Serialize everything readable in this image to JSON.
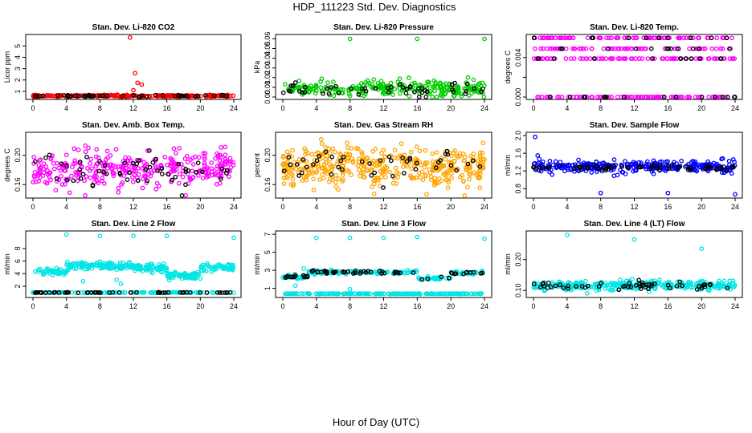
{
  "figure": {
    "title": "HDP_111223  Std. Dev. Diagnostics",
    "xlabel": "Hour of Day (UTC)"
  },
  "chart_data": [
    {
      "type": "scatter",
      "title": "Stan. Dev. Li-820 CO2",
      "ylabel": "Licor ppm",
      "xlim": [
        0,
        24
      ],
      "ylim": [
        0.5,
        5.8
      ],
      "xticks": [
        0,
        4,
        8,
        12,
        16,
        20,
        24
      ],
      "yticks": [
        1,
        2,
        3,
        4,
        5
      ],
      "ytick_labels": [
        "1",
        "2",
        "3",
        "4",
        "5"
      ],
      "series": [
        {
          "name": "primary",
          "color": "#ff0000",
          "base": 0.6,
          "spread": 0.06,
          "n": 230,
          "outliers": [
            [
              11.6,
              5.75
            ],
            [
              12.2,
              2.6
            ],
            [
              12.5,
              1.75
            ],
            [
              12.0,
              1.1
            ],
            [
              13.0,
              1.6
            ]
          ]
        },
        {
          "name": "secondary",
          "color": "#000000",
          "base": 0.6,
          "spread": 0.05,
          "n": 45,
          "outliers": []
        }
      ]
    },
    {
      "type": "scatter",
      "title": "Stan. Dev. Li-820 Pressure",
      "ylabel": "kPa",
      "xlim": [
        0,
        24
      ],
      "ylim": [
        0,
        0.062
      ],
      "xticks": [
        0,
        4,
        8,
        12,
        16,
        20,
        24
      ],
      "yticks": [
        0.0,
        0.01,
        0.02,
        0.03,
        0.04,
        0.05,
        0.06
      ],
      "ytick_labels": [
        "0.00",
        "0.01",
        "0.02",
        "0.03",
        "0.04",
        "0.05",
        "0.06"
      ],
      "series": [
        {
          "name": "primary",
          "color": "#00cc00",
          "base": 0.009,
          "spread": 0.005,
          "n": 260,
          "outliers": [
            [
              8.0,
              0.06
            ],
            [
              16.0,
              0.06
            ],
            [
              24.0,
              0.06
            ]
          ]
        },
        {
          "name": "secondary",
          "color": "#000000",
          "base": 0.008,
          "spread": 0.004,
          "n": 50,
          "outliers": []
        }
      ]
    },
    {
      "type": "scatter",
      "title": "Stan. Dev. Li-820 Temp.",
      "ylabel": "degrees C",
      "xlim": [
        0,
        24
      ],
      "ylim": [
        0,
        0.0061
      ],
      "xticks": [
        0,
        4,
        8,
        12,
        16,
        20,
        24
      ],
      "yticks": [
        0.0,
        0.002,
        0.004
      ],
      "ytick_labels": [
        "0.000",
        "",
        "0.004"
      ],
      "series": [
        {
          "name": "primary",
          "color": "#ff00ff",
          "levels": [
            0.0,
            0.0039,
            0.0049,
            0.006
          ],
          "n": 300,
          "outliers": []
        },
        {
          "name": "secondary",
          "color": "#000000",
          "levels": [
            0.0,
            0.0039,
            0.0049,
            0.006
          ],
          "n": 50,
          "outliers": []
        }
      ]
    },
    {
      "type": "scatter",
      "title": "Stan. Dev. Amb. Box Temp.",
      "ylabel": "degrees C",
      "xlim": [
        0,
        24
      ],
      "ylim": [
        0.145,
        0.228
      ],
      "xticks": [
        0,
        4,
        8,
        12,
        16,
        20,
        24
      ],
      "yticks": [
        0.16,
        0.2
      ],
      "ytick_labels": [
        "0.16",
        "0.20"
      ],
      "series": [
        {
          "name": "primary",
          "color": "#ff00ff",
          "base": 0.183,
          "spread": 0.016,
          "n": 330,
          "outliers": []
        },
        {
          "name": "secondary",
          "color": "#000000",
          "base": 0.183,
          "spread": 0.014,
          "n": 55,
          "outliers": []
        }
      ]
    },
    {
      "type": "scatter",
      "title": "Stan. Dev. Gas Stream RH",
      "ylabel": "percent",
      "xlim": [
        0,
        24
      ],
      "ylim": [
        0.145,
        0.228
      ],
      "xticks": [
        0,
        4,
        8,
        12,
        16,
        20,
        24
      ],
      "yticks": [
        0.16,
        0.2
      ],
      "ytick_labels": [
        "0.16",
        "0.20"
      ],
      "series": [
        {
          "name": "primary",
          "color": "#ffa500",
          "base": 0.186,
          "spread": 0.017,
          "n": 420,
          "outliers": []
        },
        {
          "name": "secondary",
          "color": "#000000",
          "base": 0.186,
          "spread": 0.013,
          "n": 45,
          "outliers": []
        }
      ]
    },
    {
      "type": "scatter",
      "title": "Stan. Dev. Sample Flow",
      "ylabel": "ml/min",
      "xlim": [
        0,
        24
      ],
      "ylim": [
        0.64,
        2.02
      ],
      "xticks": [
        0,
        4,
        8,
        12,
        16,
        20,
        24
      ],
      "yticks": [
        0.8,
        1.2,
        1.6,
        2.0
      ],
      "ytick_labels": [
        "0.8",
        "1.2",
        "1.6",
        "2.0"
      ],
      "series": [
        {
          "name": "primary",
          "color": "#0000ff",
          "base": 1.3,
          "spread": 0.08,
          "n": 320,
          "outliers": [
            [
              0.2,
              1.97
            ],
            [
              0.5,
              1.55
            ],
            [
              8.0,
              0.7
            ],
            [
              16.0,
              0.7
            ],
            [
              24.0,
              0.67
            ]
          ]
        },
        {
          "name": "secondary",
          "color": "#000000",
          "base": 1.28,
          "spread": 0.04,
          "n": 60,
          "outliers": []
        }
      ]
    },
    {
      "type": "scatter",
      "title": "Stan. Dev. Line 2 Flow",
      "ylabel": "ml/min",
      "xlim": [
        0,
        24
      ],
      "ylim": [
        0.6,
        10.4
      ],
      "xticks": [
        0,
        4,
        8,
        12,
        16,
        20,
        24
      ],
      "yticks": [
        2,
        4,
        6,
        8
      ],
      "ytick_labels": [
        "2",
        "4",
        "6",
        "8"
      ],
      "series": [
        {
          "name": "primary",
          "color": "#00e5e5",
          "segments": [
            [
              0,
              4,
              4.3
            ],
            [
              4,
              12,
              5.3
            ],
            [
              12,
              16,
              4.9
            ],
            [
              16,
              20,
              3.7
            ],
            [
              20,
              24,
              5.0
            ]
          ],
          "spread": 0.3,
          "n": 330,
          "outliers": [
            [
              4.0,
              10.2
            ],
            [
              8.0,
              10.0
            ],
            [
              12.0,
              10.0
            ],
            [
              16.0,
              10.0
            ],
            [
              24.0,
              9.7
            ],
            [
              6.0,
              2.8
            ],
            [
              10.0,
              3.0
            ],
            [
              10.5,
              2.4
            ]
          ]
        },
        {
          "name": "baseline",
          "color": "#00e5e5",
          "base": 1.0,
          "spread": 0.03,
          "n": 120,
          "outliers": []
        },
        {
          "name": "secondary",
          "color": "#000000",
          "base": 1.0,
          "spread": 0.03,
          "n": 55,
          "outliers": []
        }
      ]
    },
    {
      "type": "scatter",
      "title": "Stan. Dev. Line 3 Flow",
      "ylabel": "ml/min",
      "xlim": [
        0,
        24
      ],
      "ylim": [
        0.25,
        7.1
      ],
      "xticks": [
        0,
        4,
        8,
        12,
        16,
        20,
        24
      ],
      "yticks": [
        1,
        3,
        5,
        7
      ],
      "ytick_labels": [
        "1",
        "3",
        "5",
        "7"
      ],
      "series": [
        {
          "name": "primary",
          "color": "#00e5e5",
          "segments": [
            [
              0,
              3,
              2.3
            ],
            [
              3,
              16,
              2.8
            ],
            [
              16,
              20,
              2.1
            ],
            [
              20,
              24,
              2.7
            ]
          ],
          "spread": 0.1,
          "n": 200,
          "outliers": [
            [
              4.0,
              6.6
            ],
            [
              8.0,
              6.6
            ],
            [
              12.0,
              6.6
            ],
            [
              16.0,
              6.7
            ],
            [
              24.0,
              6.5
            ],
            [
              2.5,
              3.2
            ],
            [
              8.0,
              0.9
            ],
            [
              1.5,
              1.3
            ]
          ]
        },
        {
          "name": "baseline",
          "color": "#00e5e5",
          "base": 0.4,
          "spread": 0.02,
          "n": 200,
          "outliers": []
        },
        {
          "name": "secondary",
          "color": "#000000",
          "segments": [
            [
              0,
              3,
              2.3
            ],
            [
              3,
              16,
              2.8
            ],
            [
              16,
              20,
              2.1
            ],
            [
              20,
              24,
              2.7
            ]
          ],
          "spread": 0.08,
          "n": 70,
          "outliers": []
        }
      ]
    },
    {
      "type": "scatter",
      "title": "Stan. Dev. Line 4 (LT) Flow",
      "ylabel": "ml/min",
      "xlim": [
        0,
        24
      ],
      "ylim": [
        0.085,
        0.285
      ],
      "xticks": [
        0,
        4,
        8,
        12,
        16,
        20,
        24
      ],
      "yticks": [
        0.1,
        0.2
      ],
      "ytick_labels": [
        "0.10",
        "0.20"
      ],
      "series": [
        {
          "name": "primary",
          "color": "#00e5e5",
          "base": 0.116,
          "spread": 0.009,
          "n": 330,
          "outliers": [
            [
              4.0,
              0.28
            ],
            [
              12.0,
              0.265
            ],
            [
              20.0,
              0.235
            ]
          ]
        },
        {
          "name": "secondary",
          "color": "#000000",
          "base": 0.115,
          "spread": 0.008,
          "n": 55,
          "outliers": []
        }
      ]
    }
  ]
}
